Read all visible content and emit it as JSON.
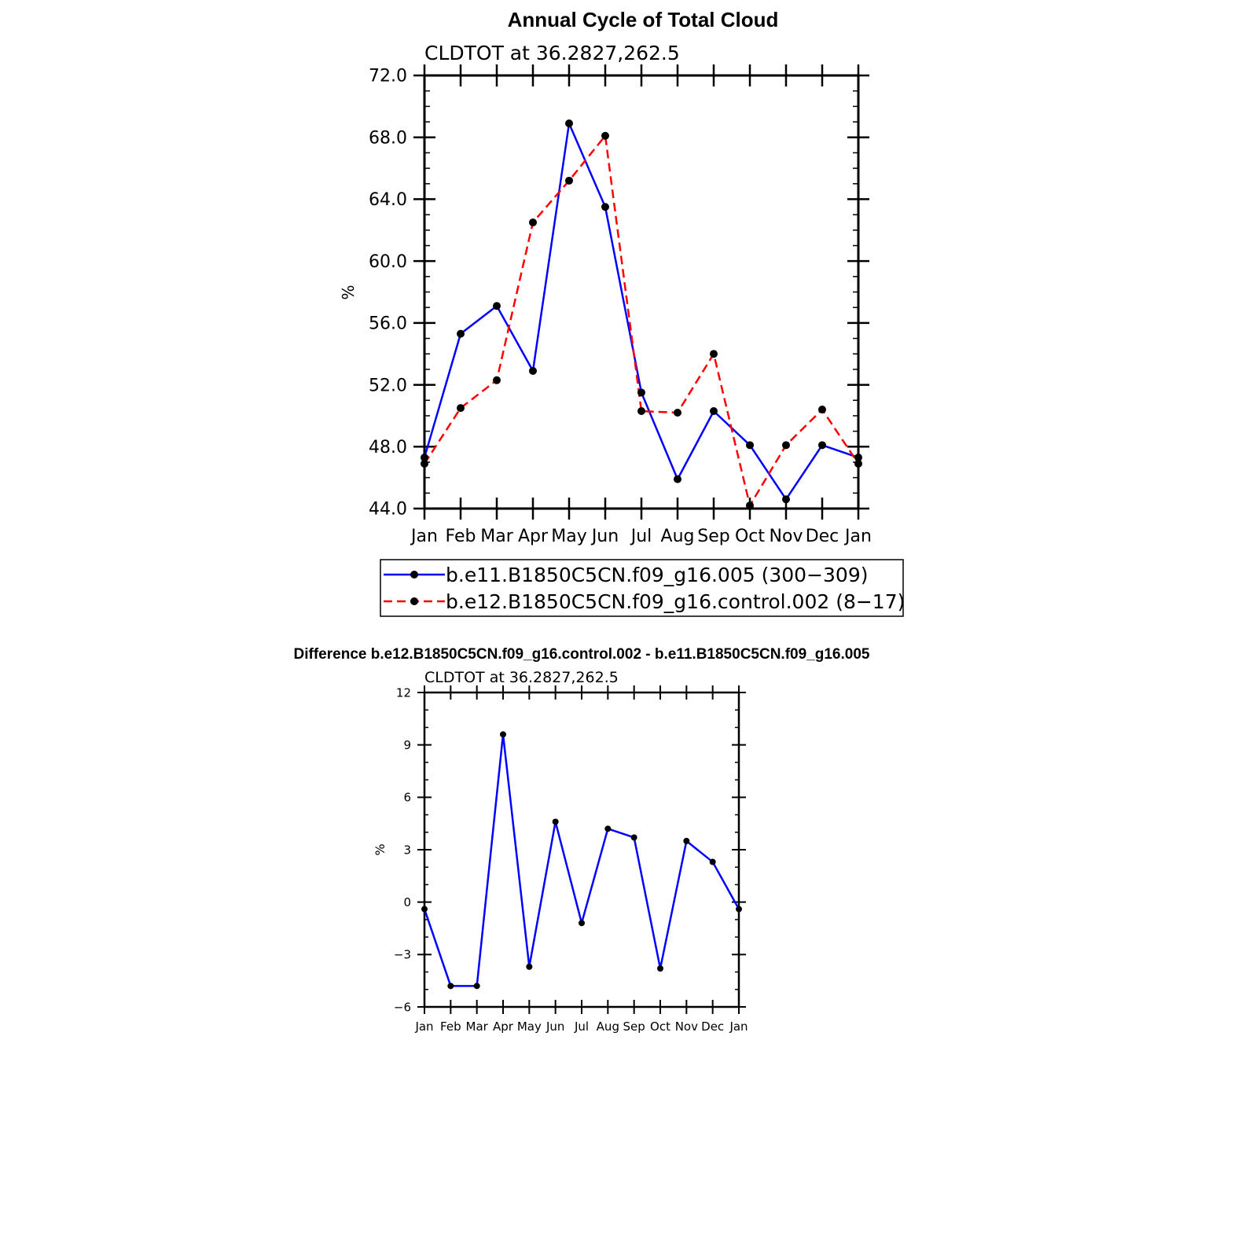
{
  "chart_data": [
    {
      "type": "line",
      "title": "Annual Cycle of Total Cloud",
      "subtitle": "CLDTOT at 36.2827,262.5",
      "ylabel": "%",
      "ylim": [
        44,
        72
      ],
      "yticks": [
        "44.0",
        "48.0",
        "52.0",
        "56.0",
        "60.0",
        "64.0",
        "68.0",
        "72.0"
      ],
      "categories": [
        "Jan",
        "Feb",
        "Mar",
        "Apr",
        "May",
        "Jun",
        "Jul",
        "Aug",
        "Sep",
        "Oct",
        "Nov",
        "Dec",
        "Jan"
      ],
      "grid": false,
      "legend_position": "bottom",
      "series": [
        {
          "name": "b.e11.B1850C5CN.f09_g16.005 (300−309)",
          "color": "#0000ff",
          "line_style": "solid",
          "values": [
            47.3,
            55.3,
            57.1,
            52.9,
            68.9,
            63.5,
            51.5,
            45.9,
            50.3,
            48.1,
            44.6,
            48.1,
            47.3
          ]
        },
        {
          "name": "b.e12.B1850C5CN.f09_g16.control.002 (8−17)",
          "color": "#ff0000",
          "line_style": "dashed",
          "values": [
            46.9,
            50.5,
            52.3,
            62.5,
            65.2,
            68.1,
            50.3,
            50.2,
            54.0,
            44.2,
            48.1,
            50.4,
            46.9
          ]
        }
      ]
    },
    {
      "type": "line",
      "title": "Difference b.e12.B1850C5CN.f09_g16.control.002 - b.e11.B1850C5CN.f09_g16.005",
      "subtitle": "CLDTOT at 36.2827,262.5",
      "ylabel": "%",
      "ylim": [
        -6,
        12
      ],
      "yticks": [
        "−6",
        "−3",
        "0",
        "3",
        "6",
        "9",
        "12"
      ],
      "categories": [
        "Jan",
        "Feb",
        "Mar",
        "Apr",
        "May",
        "Jun",
        "Jul",
        "Aug",
        "Sep",
        "Oct",
        "Nov",
        "Dec",
        "Jan"
      ],
      "grid": false,
      "series": [
        {
          "color": "#0000ff",
          "line_style": "solid",
          "values": [
            -0.4,
            -4.8,
            -4.8,
            9.6,
            -3.7,
            4.6,
            -1.2,
            4.2,
            3.7,
            -3.8,
            3.5,
            2.3,
            -0.4
          ]
        }
      ]
    }
  ]
}
